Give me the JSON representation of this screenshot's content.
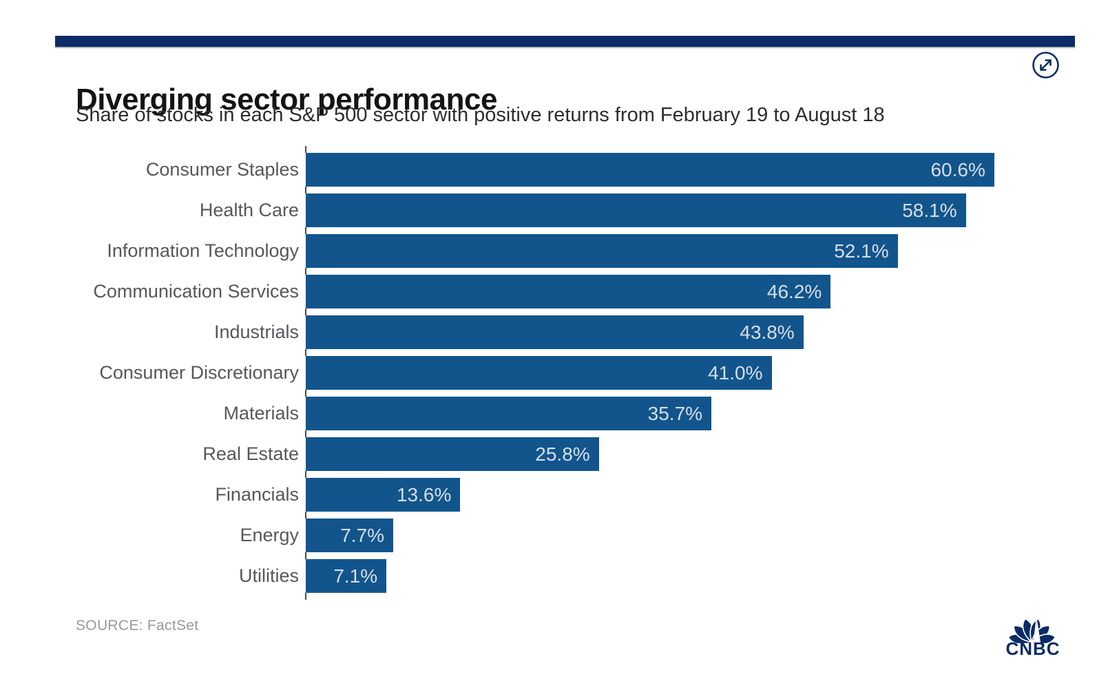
{
  "page": {
    "title": "Diverging sector performance",
    "subtitle": "Share of stocks in each S&P 500 sector with positive returns from February 19 to August 18",
    "source": "SOURCE: FactSet",
    "brand": "CNBC"
  },
  "icons": {
    "expand": "expand-diagonal-arrows-icon",
    "brand": "cnbc-peacock-icon"
  },
  "colors": {
    "bar_blue": "#12558D",
    "brand_navy": "#0B2C66",
    "category_label": "#56575B",
    "value_label": "#D7DFEA",
    "axis": "#4B4B4B",
    "title_text": "#141414",
    "subtitle_text": "#2D2D2D",
    "source_text": "#98989A"
  },
  "chart_data": {
    "type": "bar",
    "orientation": "horizontal",
    "title": "Diverging sector performance",
    "subtitle": "Share of stocks in each S&P 500 sector with positive returns from February 19 to August 18",
    "categories": [
      "Consumer Staples",
      "Health Care",
      "Information Technology",
      "Communication Services",
      "Industrials",
      "Consumer Discretionary",
      "Materials",
      "Real Estate",
      "Financials",
      "Energy",
      "Utilities"
    ],
    "values": [
      60.6,
      58.1,
      52.1,
      46.2,
      43.8,
      41.0,
      35.7,
      25.8,
      13.6,
      7.7,
      7.1
    ],
    "value_labels": [
      "60.6%",
      "58.1%",
      "52.1%",
      "46.2%",
      "43.8%",
      "41.0%",
      "35.7%",
      "25.8%",
      "13.6%",
      "7.7%",
      "7.1%"
    ],
    "unit": "%",
    "xlim": [
      0,
      61.6
    ],
    "grid": false,
    "value_label_position": "inside-end",
    "legend": "none",
    "source": "FactSet"
  }
}
